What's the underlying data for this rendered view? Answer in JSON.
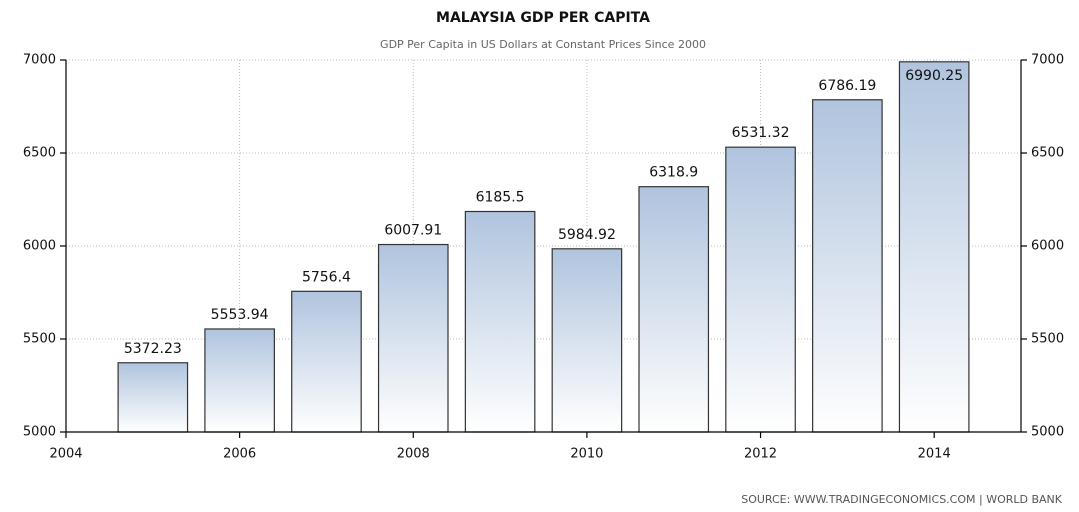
{
  "chart_data": {
    "type": "bar",
    "title": "MALAYSIA GDP PER CAPITA",
    "subtitle": "GDP Per Capita in US Dollars at Constant Prices Since 2000",
    "source": "SOURCE: WWW.TRADINGECONOMICS.COM | WORLD BANK",
    "x": [
      2005,
      2006,
      2007,
      2008,
      2009,
      2010,
      2011,
      2012,
      2013,
      2014
    ],
    "values": [
      5372.23,
      5553.94,
      5756.4,
      6007.91,
      6185.5,
      5984.92,
      6318.9,
      6531.32,
      6786.19,
      6990.25
    ],
    "color": "#b0c4de",
    "xlim": [
      2004,
      2015
    ],
    "xticks": [
      2004,
      2006,
      2008,
      2010,
      2012,
      2014
    ],
    "ylim": [
      5000,
      7000
    ],
    "yticks": [
      5000,
      5500,
      6000,
      6500,
      7000
    ],
    "y2lim": [
      5000,
      7000
    ],
    "y2ticks": [
      5000,
      5500,
      6000,
      6500,
      7000
    ],
    "grid": true
  }
}
